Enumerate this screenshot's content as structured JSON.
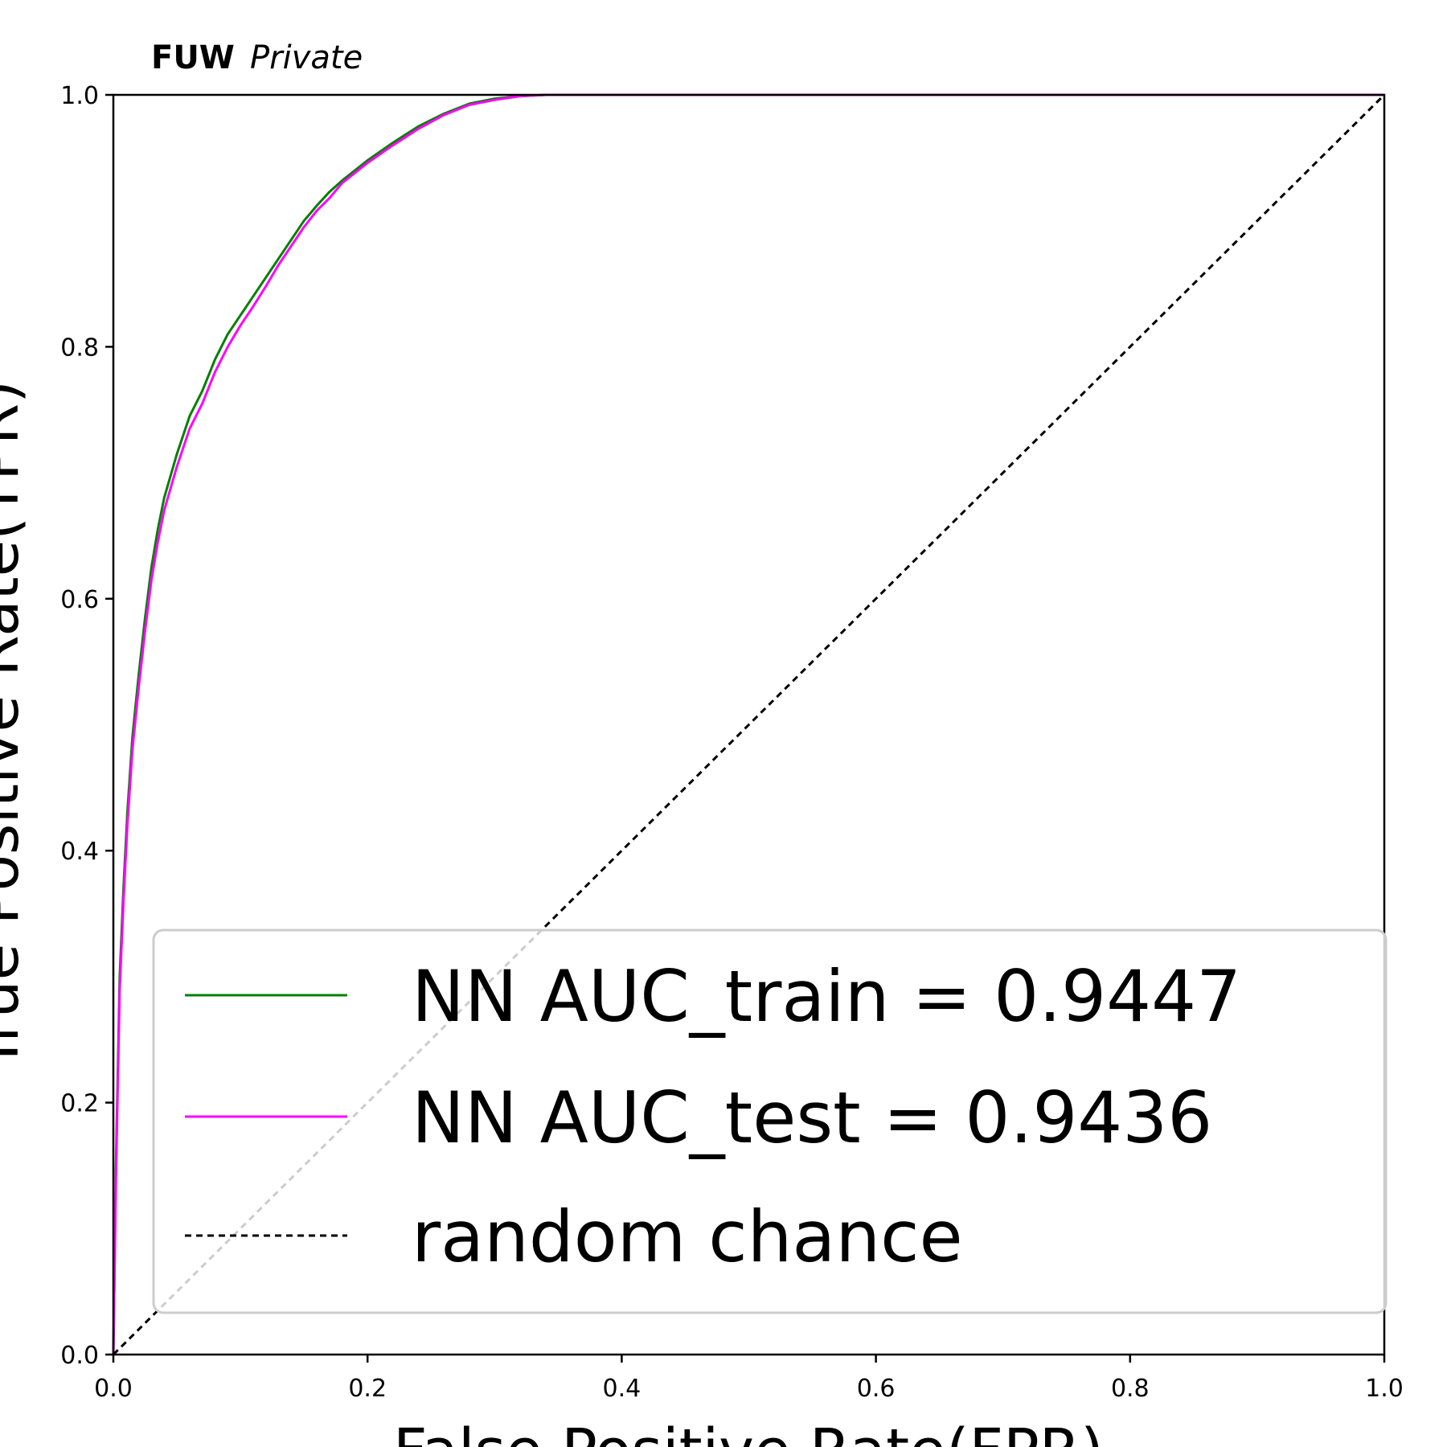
{
  "chart_data": {
    "type": "line",
    "title_bold": "FUW",
    "title_italic": "Private",
    "xlabel": "False Positive Rate(FPR)",
    "ylabel": "True Positive Rate(TPR)",
    "xlim": [
      0,
      1
    ],
    "ylim": [
      0,
      1
    ],
    "xticks": [
      "0.0",
      "0.2",
      "0.4",
      "0.6",
      "0.8",
      "1.0"
    ],
    "yticks": [
      "0.0",
      "0.2",
      "0.4",
      "0.6",
      "0.8",
      "1.0"
    ],
    "grid": false,
    "legend_position": "lower-right",
    "series": [
      {
        "name": "NN AUC_train = 0.9447",
        "color": "#008000",
        "style": "solid",
        "x": [
          0,
          0.002,
          0.005,
          0.008,
          0.011,
          0.015,
          0.02,
          0.025,
          0.03,
          0.035,
          0.04,
          0.05,
          0.06,
          0.07,
          0.08,
          0.09,
          0.1,
          0.11,
          0.12,
          0.13,
          0.14,
          0.15,
          0.16,
          0.17,
          0.18,
          0.19,
          0.2,
          0.22,
          0.24,
          0.26,
          0.28,
          0.3,
          0.32,
          0.34,
          0.36,
          0.4,
          0.5,
          0.6,
          0.7,
          0.8,
          0.9,
          1.0
        ],
        "y": [
          0,
          0.15,
          0.3,
          0.37,
          0.43,
          0.49,
          0.54,
          0.585,
          0.625,
          0.655,
          0.68,
          0.715,
          0.745,
          0.765,
          0.79,
          0.81,
          0.825,
          0.84,
          0.855,
          0.87,
          0.885,
          0.9,
          0.912,
          0.923,
          0.932,
          0.94,
          0.948,
          0.962,
          0.975,
          0.985,
          0.993,
          0.997,
          0.999,
          1.0,
          1.0,
          1.0,
          1.0,
          1.0,
          1.0,
          1.0,
          1.0,
          1.0
        ]
      },
      {
        "name": "NN AUC_test = 0.9436",
        "color": "#ff00ff",
        "style": "solid",
        "x": [
          0,
          0.002,
          0.005,
          0.008,
          0.011,
          0.015,
          0.02,
          0.025,
          0.03,
          0.035,
          0.04,
          0.05,
          0.06,
          0.07,
          0.08,
          0.09,
          0.1,
          0.11,
          0.12,
          0.13,
          0.14,
          0.15,
          0.16,
          0.17,
          0.18,
          0.19,
          0.2,
          0.22,
          0.24,
          0.26,
          0.28,
          0.3,
          0.32,
          0.34,
          0.36,
          0.4,
          0.5,
          0.6,
          0.7,
          0.8,
          0.9,
          1.0
        ],
        "y": [
          0,
          0.14,
          0.29,
          0.36,
          0.42,
          0.48,
          0.53,
          0.575,
          0.615,
          0.645,
          0.67,
          0.705,
          0.735,
          0.755,
          0.78,
          0.8,
          0.817,
          0.832,
          0.848,
          0.865,
          0.88,
          0.895,
          0.908,
          0.918,
          0.93,
          0.938,
          0.946,
          0.96,
          0.973,
          0.984,
          0.992,
          0.996,
          0.999,
          1.0,
          1.0,
          1.0,
          1.0,
          1.0,
          1.0,
          1.0,
          1.0,
          1.0
        ]
      },
      {
        "name": "random chance",
        "color": "#000000",
        "style": "dashed",
        "x": [
          0,
          1
        ],
        "y": [
          0,
          1
        ]
      }
    ]
  }
}
